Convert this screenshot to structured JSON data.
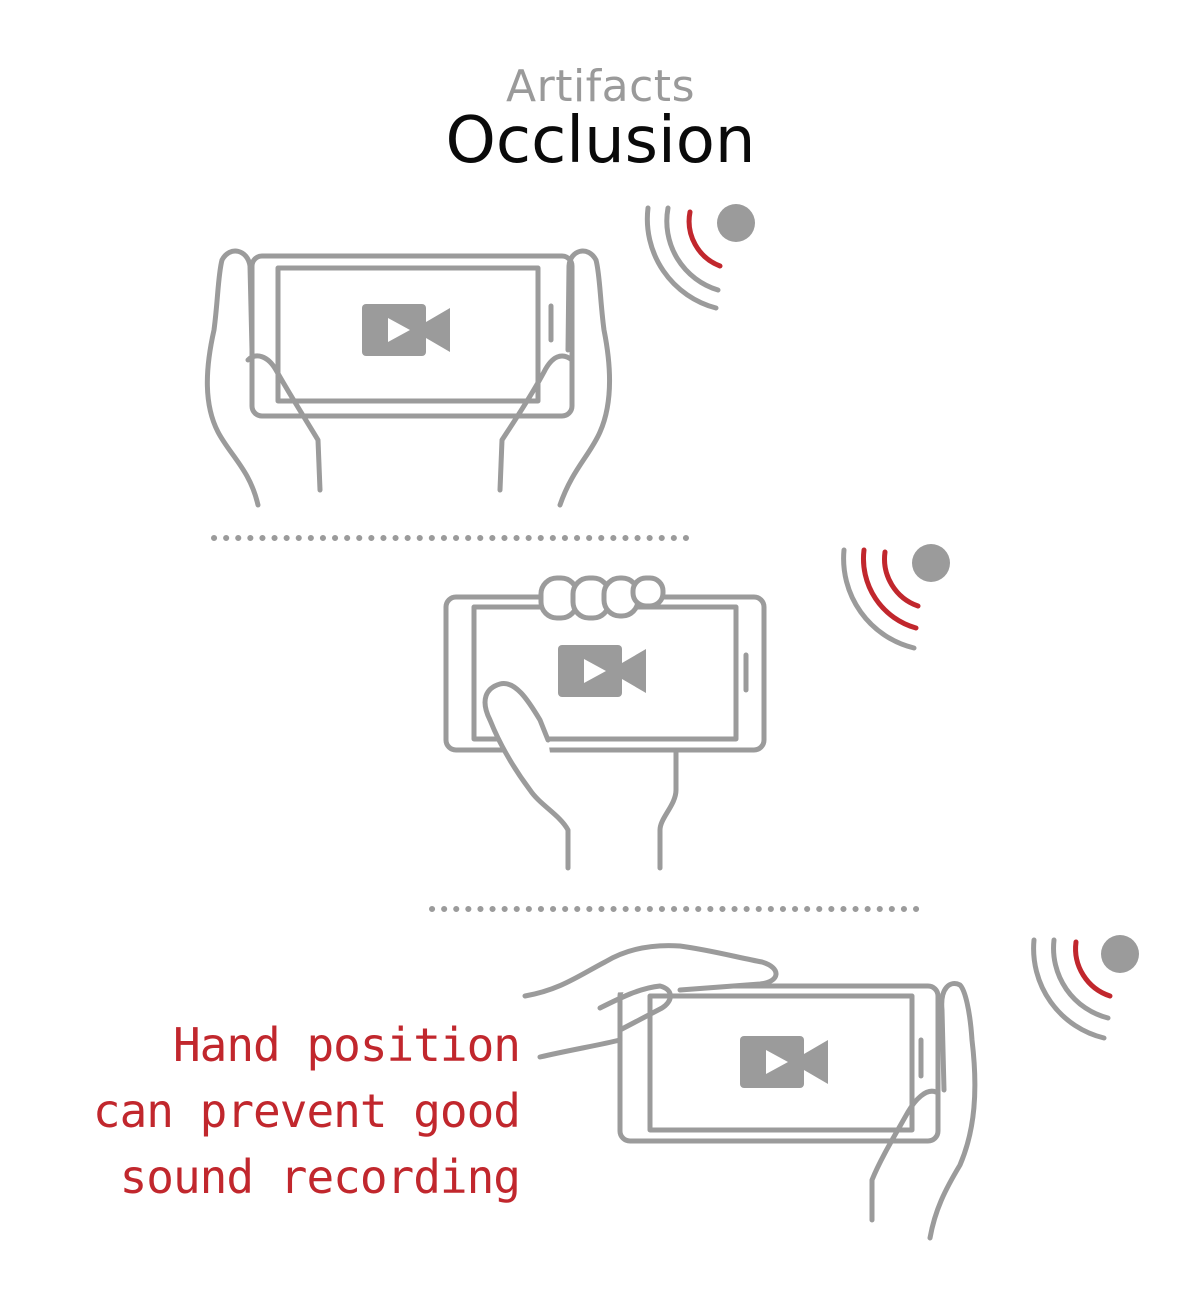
{
  "header": {
    "supertitle": "Artifacts",
    "title": "Occlusion"
  },
  "caption": {
    "lines": [
      "Hand position",
      "can prevent good",
      "sound recording"
    ]
  },
  "colors": {
    "line_gray": "#9b9b9b",
    "accent_red": "#c1272d",
    "title_black": "#0a0a0a",
    "supertitle_gray": "#9a9a9a"
  },
  "scenes": [
    {
      "name": "two-hands-grip",
      "icon": "video-camera-icon",
      "signal": "sound-waves-icon"
    },
    {
      "name": "fingers-over-top",
      "icon": "video-camera-icon",
      "signal": "sound-waves-icon"
    },
    {
      "name": "hand-over-corner",
      "icon": "video-camera-icon",
      "signal": "sound-waves-icon"
    }
  ]
}
